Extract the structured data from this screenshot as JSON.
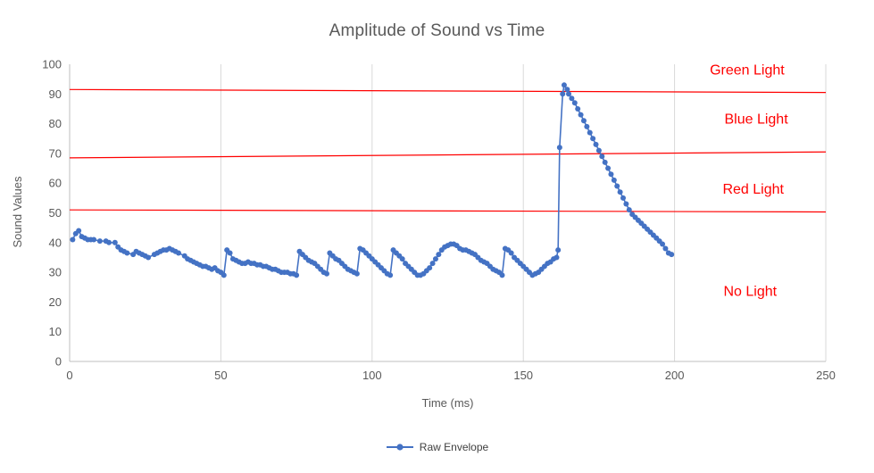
{
  "chart_data": {
    "type": "line",
    "title": "Amplitude of Sound vs Time",
    "xlabel": "Time (ms)",
    "ylabel": "Sound Values",
    "xlim": [
      0,
      250
    ],
    "ylim": [
      0,
      100
    ],
    "x_ticks": [
      0,
      50,
      100,
      150,
      200,
      250
    ],
    "y_ticks": [
      0,
      10,
      20,
      30,
      40,
      50,
      60,
      70,
      80,
      90,
      100
    ],
    "grid": "vertical-only",
    "colors": {
      "series": "#4472C4",
      "threshold": "#FF0000",
      "grid": "#D9D9D9",
      "axis": "#BFBFBF",
      "text": "#595959"
    },
    "legend": {
      "position": "bottom",
      "entries": [
        "Raw Envelope"
      ]
    },
    "threshold_lines": [
      {
        "name": "green-threshold",
        "y_start": 91.5,
        "y_end": 90.5
      },
      {
        "name": "blue-threshold",
        "y_start": 68.5,
        "y_end": 70.5
      },
      {
        "name": "red-threshold",
        "y_start": 51.0,
        "y_end": 50.3
      }
    ],
    "region_labels": [
      {
        "label": "Green Light",
        "x": 224,
        "y": 98
      },
      {
        "label": "Blue Light",
        "x": 227,
        "y": 81.5
      },
      {
        "label": "Red Light",
        "x": 226,
        "y": 58
      },
      {
        "label": "No Light",
        "x": 225,
        "y": 23.5
      }
    ],
    "series": [
      {
        "name": "Raw Envelope",
        "points": [
          [
            1,
            41
          ],
          [
            2,
            43
          ],
          [
            3,
            44
          ],
          [
            4,
            42
          ],
          [
            5,
            41.5
          ],
          [
            6,
            41
          ],
          [
            7,
            41
          ],
          [
            8,
            41
          ],
          [
            10,
            40.5
          ],
          [
            12,
            40.5
          ],
          [
            13,
            40
          ],
          [
            15,
            40
          ],
          [
            16,
            38.5
          ],
          [
            17,
            37.5
          ],
          [
            18,
            37
          ],
          [
            19,
            36.5
          ],
          [
            21,
            36
          ],
          [
            22,
            37
          ],
          [
            23,
            36.5
          ],
          [
            24,
            36
          ],
          [
            25,
            35.5
          ],
          [
            26,
            35
          ],
          [
            28,
            36
          ],
          [
            29,
            36.5
          ],
          [
            30,
            37
          ],
          [
            31,
            37.5
          ],
          [
            32,
            37.5
          ],
          [
            33,
            38
          ],
          [
            34,
            37.5
          ],
          [
            35,
            37
          ],
          [
            36,
            36.5
          ],
          [
            38,
            35.5
          ],
          [
            39,
            34.5
          ],
          [
            40,
            34
          ],
          [
            41,
            33.5
          ],
          [
            42,
            33
          ],
          [
            43,
            32.5
          ],
          [
            44,
            32
          ],
          [
            45,
            32
          ],
          [
            46,
            31.5
          ],
          [
            47,
            31
          ],
          [
            48,
            31.5
          ],
          [
            49,
            30.5
          ],
          [
            50,
            30
          ],
          [
            51,
            29
          ],
          [
            52,
            37.5
          ],
          [
            53,
            36.5
          ],
          [
            54,
            34.5
          ],
          [
            55,
            34
          ],
          [
            56,
            33.5
          ],
          [
            57,
            33
          ],
          [
            58,
            33
          ],
          [
            59,
            33.5
          ],
          [
            60,
            33
          ],
          [
            61,
            33
          ],
          [
            62,
            32.5
          ],
          [
            63,
            32.5
          ],
          [
            64,
            32
          ],
          [
            65,
            32
          ],
          [
            66,
            31.5
          ],
          [
            67,
            31
          ],
          [
            68,
            31
          ],
          [
            69,
            30.5
          ],
          [
            70,
            30
          ],
          [
            71,
            30
          ],
          [
            72,
            30
          ],
          [
            73,
            29.5
          ],
          [
            74,
            29.5
          ],
          [
            75,
            29
          ],
          [
            76,
            37
          ],
          [
            77,
            36
          ],
          [
            78,
            35
          ],
          [
            79,
            34
          ],
          [
            80,
            33.5
          ],
          [
            81,
            33
          ],
          [
            82,
            32
          ],
          [
            83,
            31
          ],
          [
            84,
            30
          ],
          [
            85,
            29.5
          ],
          [
            86,
            36.5
          ],
          [
            87,
            35.5
          ],
          [
            88,
            34.5
          ],
          [
            89,
            34
          ],
          [
            90,
            33
          ],
          [
            91,
            32
          ],
          [
            92,
            31
          ],
          [
            93,
            30.5
          ],
          [
            94,
            30
          ],
          [
            95,
            29.5
          ],
          [
            96,
            38
          ],
          [
            97,
            37.5
          ],
          [
            98,
            36.5
          ],
          [
            99,
            35.5
          ],
          [
            100,
            34.5
          ],
          [
            101,
            33.5
          ],
          [
            102,
            32.5
          ],
          [
            103,
            31.5
          ],
          [
            104,
            30.5
          ],
          [
            105,
            29.5
          ],
          [
            106,
            29
          ],
          [
            107,
            37.5
          ],
          [
            108,
            36.5
          ],
          [
            109,
            35.5
          ],
          [
            110,
            34.5
          ],
          [
            111,
            33
          ],
          [
            112,
            32
          ],
          [
            113,
            31
          ],
          [
            114,
            30
          ],
          [
            115,
            29
          ],
          [
            116,
            29
          ],
          [
            117,
            29.5
          ],
          [
            118,
            30.5
          ],
          [
            119,
            31.5
          ],
          [
            120,
            33
          ],
          [
            121,
            34.5
          ],
          [
            122,
            36
          ],
          [
            123,
            37.5
          ],
          [
            124,
            38.5
          ],
          [
            125,
            39
          ],
          [
            126,
            39.5
          ],
          [
            127,
            39.5
          ],
          [
            128,
            39
          ],
          [
            129,
            38
          ],
          [
            130,
            37.5
          ],
          [
            131,
            37.5
          ],
          [
            132,
            37
          ],
          [
            133,
            36.5
          ],
          [
            134,
            36
          ],
          [
            135,
            35
          ],
          [
            136,
            34
          ],
          [
            137,
            33.5
          ],
          [
            138,
            33
          ],
          [
            139,
            32
          ],
          [
            140,
            31
          ],
          [
            141,
            30.5
          ],
          [
            142,
            30
          ],
          [
            143,
            29
          ],
          [
            144,
            38
          ],
          [
            145,
            37.5
          ],
          [
            146,
            36.5
          ],
          [
            147,
            35
          ],
          [
            148,
            34
          ],
          [
            149,
            33
          ],
          [
            150,
            32
          ],
          [
            151,
            31
          ],
          [
            152,
            30
          ],
          [
            153,
            29
          ],
          [
            154,
            29.5
          ],
          [
            155,
            30
          ],
          [
            156,
            31
          ],
          [
            157,
            32
          ],
          [
            158,
            33
          ],
          [
            159,
            33.5
          ],
          [
            160,
            34.5
          ],
          [
            161,
            35
          ],
          [
            161.5,
            37.5
          ],
          [
            162,
            72
          ],
          [
            163,
            90
          ],
          [
            163.5,
            93
          ],
          [
            164.5,
            91.5
          ],
          [
            165,
            90
          ],
          [
            166,
            88.5
          ],
          [
            167,
            87
          ],
          [
            168,
            85
          ],
          [
            169,
            83
          ],
          [
            170,
            81
          ],
          [
            171,
            79
          ],
          [
            172,
            77
          ],
          [
            173,
            75
          ],
          [
            174,
            73
          ],
          [
            175,
            71
          ],
          [
            176,
            69
          ],
          [
            177,
            67
          ],
          [
            178,
            65
          ],
          [
            179,
            63
          ],
          [
            180,
            61
          ],
          [
            181,
            59
          ],
          [
            182,
            57
          ],
          [
            183,
            55
          ],
          [
            184,
            53
          ],
          [
            185,
            51
          ],
          [
            186,
            49.5
          ],
          [
            187,
            48.5
          ],
          [
            188,
            47.5
          ],
          [
            189,
            46.5
          ],
          [
            190,
            45.5
          ],
          [
            191,
            44.5
          ],
          [
            192,
            43.5
          ],
          [
            193,
            42.5
          ],
          [
            194,
            41.5
          ],
          [
            195,
            40.5
          ],
          [
            196,
            39.5
          ],
          [
            197,
            38
          ],
          [
            198,
            36.5
          ],
          [
            199,
            36
          ]
        ]
      }
    ]
  }
}
